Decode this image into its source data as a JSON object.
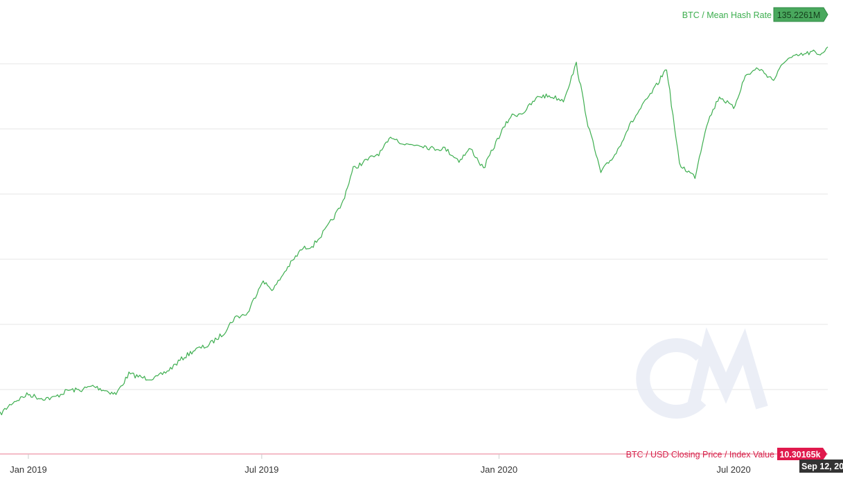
{
  "chart_data": {
    "type": "line",
    "x_axis": {
      "type": "date",
      "ticks": [
        {
          "label": "Jan 2019",
          "date": "2019-01-01"
        },
        {
          "label": "Jul 2019",
          "date": "2019-07-01"
        },
        {
          "label": "Jan 2020",
          "date": "2020-01-01"
        },
        {
          "label": "Jul 2020",
          "date": "2020-07-01"
        }
      ],
      "range": [
        "2018-12-10",
        "2020-09-12"
      ],
      "crosshair_label": "Sep 12, 20"
    },
    "grid": true,
    "series": [
      {
        "name": "BTC / Mean Hash Rate",
        "color": "#3dae4f",
        "last_value_label": "135.2261M",
        "y_range": [
          35000000,
          140000000
        ],
        "x": [
          "2018-12-10",
          "2018-12-20",
          "2019-01-01",
          "2019-01-10",
          "2019-01-20",
          "2019-02-01",
          "2019-02-10",
          "2019-02-20",
          "2019-03-01",
          "2019-03-10",
          "2019-03-20",
          "2019-04-01",
          "2019-04-10",
          "2019-04-20",
          "2019-05-01",
          "2019-05-10",
          "2019-05-20",
          "2019-06-01",
          "2019-06-10",
          "2019-06-20",
          "2019-07-01",
          "2019-07-10",
          "2019-07-20",
          "2019-08-01",
          "2019-08-10",
          "2019-08-20",
          "2019-09-01",
          "2019-09-10",
          "2019-09-20",
          "2019-10-01",
          "2019-10-10",
          "2019-10-20",
          "2019-11-01",
          "2019-11-10",
          "2019-11-20",
          "2019-12-01",
          "2019-12-10",
          "2019-12-20",
          "2020-01-01",
          "2020-01-10",
          "2020-01-20",
          "2020-02-01",
          "2020-02-10",
          "2020-02-20",
          "2020-03-01",
          "2020-03-10",
          "2020-03-20",
          "2020-04-01",
          "2020-04-10",
          "2020-04-20",
          "2020-05-01",
          "2020-05-10",
          "2020-05-20",
          "2020-06-01",
          "2020-06-10",
          "2020-06-20",
          "2020-07-01",
          "2020-07-10",
          "2020-07-20",
          "2020-08-01",
          "2020-08-10",
          "2020-08-20",
          "2020-09-01",
          "2020-09-05",
          "2020-09-12"
        ],
        "values": [
          44,
          47,
          49,
          48,
          48,
          50,
          50,
          51,
          50,
          49,
          54,
          53,
          53,
          55,
          58,
          60,
          61,
          64,
          68,
          69,
          77,
          75,
          80,
          85,
          86,
          90,
          96,
          105,
          107,
          109,
          113,
          111,
          111,
          110,
          110,
          107,
          110,
          105,
          113,
          118,
          119,
          123,
          123,
          122,
          131,
          116,
          104,
          109,
          115,
          120,
          125,
          130,
          106,
          103,
          116,
          123,
          120,
          128,
          130,
          127,
          132,
          133,
          134,
          133,
          135.2261
        ],
        "values_unit": "M"
      },
      {
        "name": "BTC / USD Closing Price / Index Value",
        "color": "#d6204a",
        "last_value_label": "10.30165k"
      }
    ],
    "watermark": "CM"
  }
}
